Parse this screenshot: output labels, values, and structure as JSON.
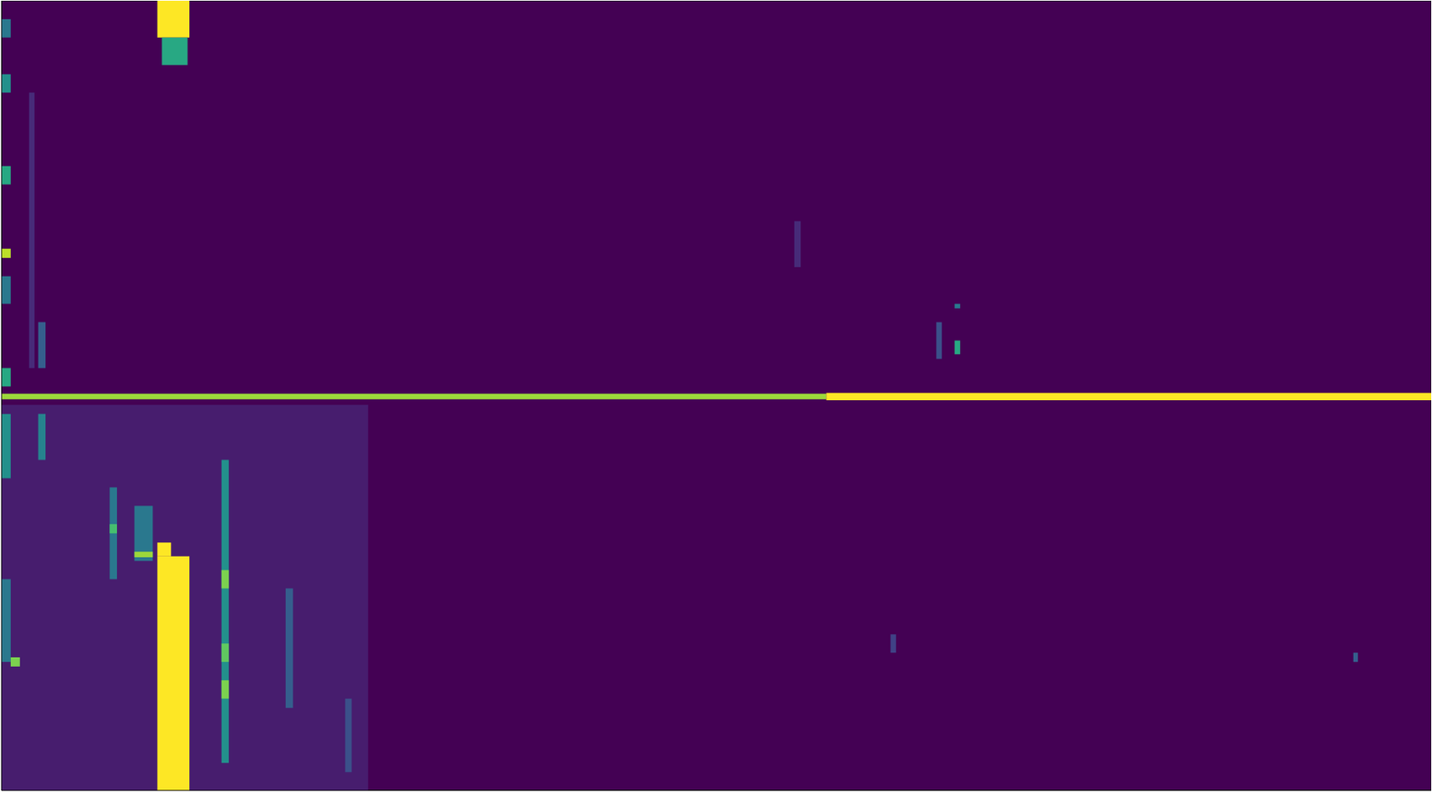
{
  "chart_data": {
    "type": "heatmap",
    "xlim": [
      0,
      156
    ],
    "ylim": [
      0,
      86
    ],
    "tick_labels": false,
    "background": 0,
    "color_range": [
      0,
      1
    ],
    "cells": [
      [
        0,
        40,
        44,
        86,
        0.08
      ],
      [
        3,
        3.6,
        10,
        40,
        0.12
      ],
      [
        86.5,
        87.2,
        24,
        29,
        0.12
      ],
      [
        0,
        90,
        42.8,
        43.4,
        0.85
      ],
      [
        90,
        156,
        42.7,
        43.5,
        1
      ],
      [
        17,
        20.5,
        0,
        4,
        1
      ],
      [
        17.5,
        20.3,
        4,
        7,
        0.6
      ],
      [
        17,
        20.5,
        60.5,
        86,
        1
      ],
      [
        17,
        18.5,
        59,
        60.5,
        1
      ],
      [
        24,
        24.8,
        50,
        83,
        0.5
      ],
      [
        24,
        24.8,
        62,
        64,
        0.8
      ],
      [
        24,
        24.8,
        70,
        72,
        0.75
      ],
      [
        24,
        24.8,
        74,
        76,
        0.8
      ],
      [
        11.8,
        12.6,
        53,
        63,
        0.4
      ],
      [
        11.8,
        12.6,
        57,
        58,
        0.7
      ],
      [
        14.5,
        16.5,
        55,
        61,
        0.4
      ],
      [
        14.5,
        16.5,
        60,
        60.6,
        0.85
      ],
      [
        31,
        31.8,
        64,
        77,
        0.3
      ],
      [
        37.5,
        38.2,
        76,
        84,
        0.25
      ],
      [
        4,
        4.8,
        45,
        50,
        0.45
      ],
      [
        4,
        4.8,
        35,
        40,
        0.3
      ],
      [
        0,
        1,
        2,
        4,
        0.4
      ],
      [
        0,
        1,
        8,
        10,
        0.5
      ],
      [
        0,
        1,
        18,
        20,
        0.6
      ],
      [
        0,
        1,
        27,
        28,
        0.9
      ],
      [
        0,
        1,
        30,
        33,
        0.4
      ],
      [
        0,
        1,
        40,
        42,
        0.6
      ],
      [
        0,
        1,
        45,
        52,
        0.5
      ],
      [
        0,
        1,
        63,
        72,
        0.4
      ],
      [
        1,
        2,
        71.5,
        72.5,
        0.8
      ],
      [
        102,
        102.6,
        35,
        39,
        0.25
      ],
      [
        104,
        104.6,
        37,
        38.5,
        0.6
      ],
      [
        104,
        104.6,
        33,
        33.5,
        0.4
      ],
      [
        147.5,
        148,
        71,
        72,
        0.3
      ],
      [
        97,
        97.6,
        69,
        71,
        0.2
      ]
    ]
  }
}
